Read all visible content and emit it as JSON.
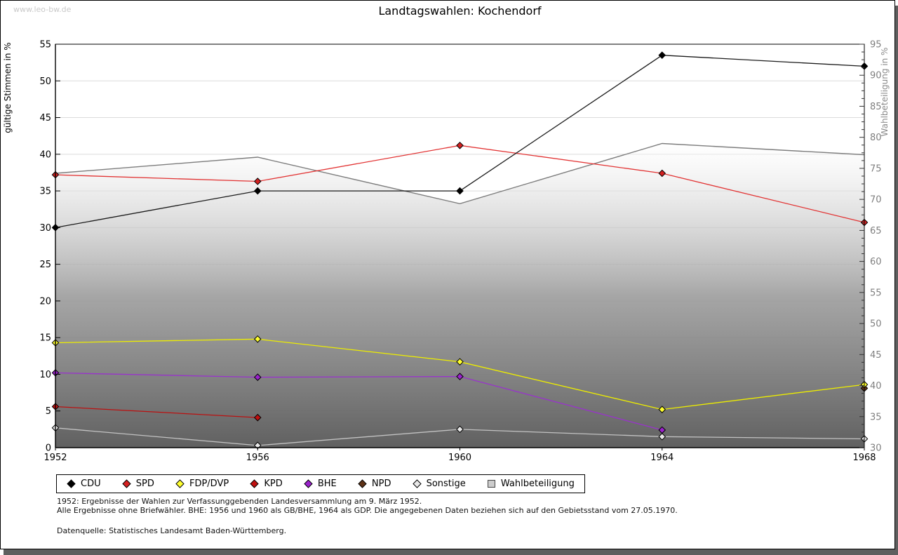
{
  "page": {
    "watermark": "www.leo-bw.de",
    "title": "Landtagswahlen: Kochendorf",
    "footnotes": [
      "1952: Ergebnisse der Wahlen zur Verfassunggebenden Landesversammlung am 9. März 1952.",
      "Alle Ergebnisse ohne Briefwähler. BHE: 1956 und 1960 als GB/BHE, 1964 als GDP. Die angegebenen Daten beziehen sich auf den Gebietsstand vom 27.05.1970.",
      "Datenquelle: Statistisches Landesamt Baden-Württemberg."
    ],
    "shadow_color": "#5f5f5f"
  },
  "chart_data": {
    "type": "line",
    "title": "Landtagswahlen: Kochendorf",
    "x": [
      1952,
      1956,
      1960,
      1964,
      1968
    ],
    "axes": {
      "left": {
        "label": "gültige Stimmen in %",
        "min": 0,
        "max": 55,
        "tick_step": 5,
        "label_color": "#000000",
        "tick_color": "#000000"
      },
      "right": {
        "label": "Wahlbeteiligung in %",
        "min": 30,
        "max": 95,
        "tick_step": 5,
        "minor_step": 1.25,
        "label_color": "#8a8a8a",
        "tick_color": "#7f7f7f"
      }
    },
    "grid": {
      "horizontal": true,
      "at_left_ticks": true,
      "color": "#dcdcdc"
    },
    "legend_position": "bottom",
    "participation_area": {
      "gradient_top": "#fbfbfb",
      "gradient_bottom": "#5d5d5d"
    },
    "series": [
      {
        "name": "CDU",
        "axis": "left",
        "marker": "diamond",
        "line_color": "#1a1a1a",
        "marker_fill": "#000000",
        "years": [
          1952,
          1956,
          1960,
          1964,
          1968
        ],
        "values": [
          30.0,
          35.0,
          35.0,
          53.5,
          52.0
        ]
      },
      {
        "name": "SPD",
        "axis": "left",
        "marker": "diamond",
        "line_color": "#e23434",
        "marker_fill": "#d42020",
        "years": [
          1952,
          1956,
          1960,
          1964,
          1968
        ],
        "values": [
          37.2,
          36.3,
          41.2,
          37.4,
          30.7
        ]
      },
      {
        "name": "FDP/DVP",
        "axis": "left",
        "marker": "diamond",
        "line_color": "#eded00",
        "marker_fill": "#ffff2e",
        "years": [
          1952,
          1956,
          1960,
          1964,
          1968
        ],
        "values": [
          14.3,
          14.8,
          11.7,
          5.2,
          8.6
        ]
      },
      {
        "name": "KPD",
        "axis": "left",
        "marker": "diamond",
        "line_color": "#bb1111",
        "marker_fill": "#c01010",
        "years": [
          1952,
          1956
        ],
        "values": [
          5.6,
          4.1
        ]
      },
      {
        "name": "BHE",
        "axis": "left",
        "marker": "diamond",
        "line_color": "#9933cc",
        "marker_fill": "#9a22cc",
        "years": [
          1952,
          1956,
          1960,
          1964
        ],
        "values": [
          10.2,
          9.6,
          9.7,
          2.4
        ]
      },
      {
        "name": "NPD",
        "axis": "left",
        "marker": "diamond",
        "line_color": "#5e3217",
        "marker_fill": "#5e3217",
        "years": [
          1968
        ],
        "values": [
          8.1
        ]
      },
      {
        "name": "Sonstige",
        "axis": "left",
        "marker": "diamond",
        "line_color": "#c2c2c2",
        "marker_fill": "#e8e8e8",
        "years": [
          1952,
          1956,
          1960,
          1964,
          1968
        ],
        "values": [
          2.7,
          0.3,
          2.5,
          1.5,
          1.2
        ]
      },
      {
        "name": "Wahlbeteiligung",
        "axis": "right",
        "marker": "square",
        "line_color": "#7d7d7d",
        "marker_fill": "#cccccc",
        "years": [
          1952,
          1956,
          1960,
          1964,
          1968
        ],
        "values": [
          74.2,
          76.8,
          69.3,
          79.0,
          77.2
        ],
        "area": true
      }
    ]
  }
}
